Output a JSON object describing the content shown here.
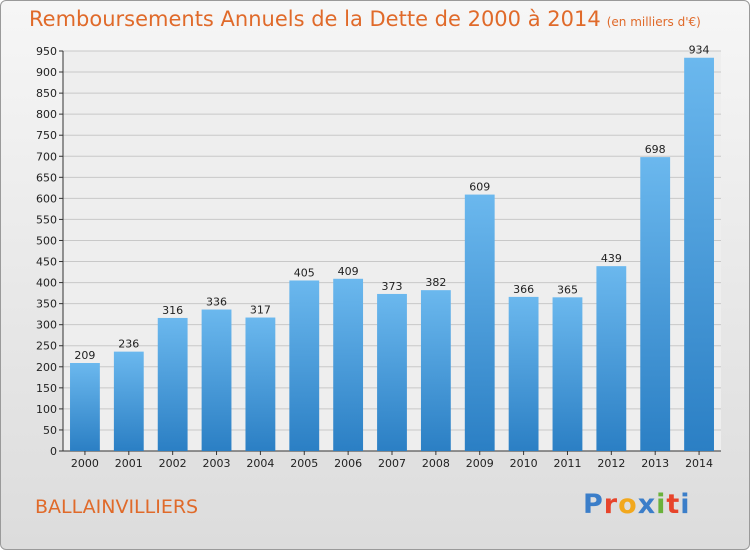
{
  "title": "Remboursements Annuels de la Dette de 2000 à 2014",
  "unit": "(en milliers d'€)",
  "commune": "BALLAINVILLIERS",
  "logo": {
    "letters": [
      "P",
      "r",
      "o",
      "x",
      "i",
      "t",
      "i"
    ],
    "colors": [
      "#3b7ec9",
      "#e7442b",
      "#f2a81d",
      "#3b7ec9",
      "#6ab23b",
      "#e7442b",
      "#3b7ec9"
    ]
  },
  "colors": {
    "bar_light": "#6bb8ee",
    "bar_dark": "#2b7fc4",
    "grid": "#c8c8c8",
    "title": "#e06a2a"
  },
  "chart_data": {
    "type": "bar",
    "title": "Remboursements Annuels de la Dette de 2000 à 2014",
    "ylabel": "(en milliers d'€)",
    "categories": [
      "2000",
      "2001",
      "2002",
      "2003",
      "2004",
      "2005",
      "2006",
      "2007",
      "2008",
      "2009",
      "2010",
      "2011",
      "2012",
      "2013",
      "2014"
    ],
    "values": [
      209,
      236,
      316,
      336,
      317,
      405,
      409,
      373,
      382,
      609,
      366,
      365,
      439,
      698,
      934
    ],
    "ylim": [
      0,
      950
    ],
    "yticks": [
      0,
      50,
      100,
      150,
      200,
      250,
      300,
      350,
      400,
      450,
      500,
      550,
      600,
      650,
      700,
      750,
      800,
      850,
      900,
      950
    ],
    "grid": true
  }
}
